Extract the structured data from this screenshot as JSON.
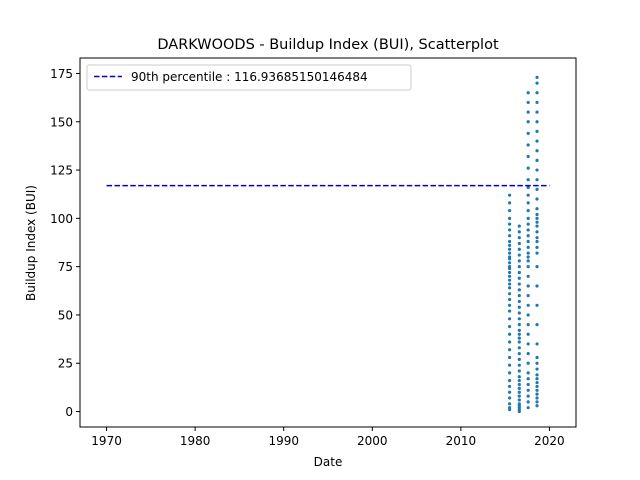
{
  "chart_data": {
    "type": "scatter",
    "title": "DARKWOODS - Buildup Index (BUI), Scatterplot",
    "xlabel": "Date",
    "ylabel": "Buildup Index (BUI)",
    "xlim": [
      1967,
      2023
    ],
    "ylim": [
      -8,
      183
    ],
    "xticks": [
      1970,
      1980,
      1990,
      2000,
      2010,
      2020
    ],
    "yticks": [
      0,
      25,
      50,
      75,
      100,
      125,
      150,
      175
    ],
    "grid": false,
    "legend_position": "upper-left",
    "colors": {
      "points": "#1f77b4",
      "percentile_line": "#0000cd"
    },
    "percentile_line": {
      "label": "90th percentile : 116.93685150146484",
      "y": 116.93685150146484,
      "x": [
        1970,
        2020
      ]
    },
    "series": [
      {
        "name": "",
        "seasons": [
          {
            "x": 2015.5,
            "values": [
              1,
              2,
              4,
              7,
              10,
              13,
              16,
              20,
              24,
              28,
              32,
              36,
              40,
              44,
              48,
              52,
              55,
              58,
              61,
              64,
              66,
              68,
              70,
              72,
              74,
              75,
              77,
              79,
              80,
              82,
              84,
              86,
              88,
              91,
              94,
              97,
              100,
              104,
              108,
              112
            ]
          },
          {
            "x": 2016.6,
            "values": [
              0,
              1,
              2,
              3,
              4,
              6,
              8,
              10,
              12,
              14,
              16,
              18,
              21,
              24,
              27,
              30,
              33,
              36,
              38,
              40,
              42,
              45,
              48,
              51,
              54,
              57,
              60,
              63,
              66,
              69,
              72,
              75,
              78,
              81,
              84,
              87,
              90,
              93,
              96
            ]
          },
          {
            "x": 2017.6,
            "values": [
              2,
              5,
              8,
              11,
              14,
              17,
              20,
              25,
              30,
              35,
              40,
              45,
              50,
              55,
              60,
              65,
              70,
              75,
              78,
              80,
              82,
              85,
              88,
              91,
              94,
              97,
              100,
              104,
              108,
              112,
              116,
              120,
              126,
              132,
              138,
              144,
              150,
              155,
              160,
              165
            ]
          },
          {
            "x": 2018.6,
            "values": [
              3,
              5,
              7,
              9,
              11,
              13,
              15,
              17,
              19,
              22,
              25,
              28,
              35,
              45,
              55,
              65,
              75,
              82,
              85,
              88,
              90,
              93,
              96,
              98,
              100,
              102,
              105,
              110,
              115,
              120,
              125,
              130,
              135,
              140,
              145,
              150,
              155,
              160,
              165,
              170,
              173
            ]
          }
        ]
      }
    ]
  }
}
